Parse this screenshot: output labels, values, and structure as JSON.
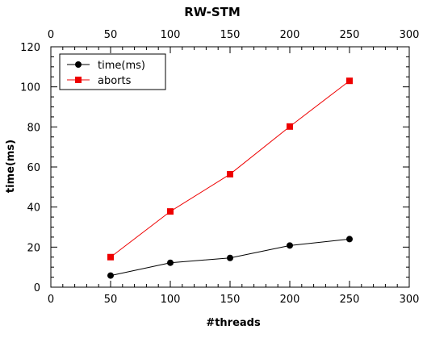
{
  "chart_data": {
    "type": "line",
    "title": "RW-STM",
    "xlabel": "#threads",
    "ylabel": "time(ms)",
    "xlim": [
      0,
      300
    ],
    "ylim": [
      0,
      120
    ],
    "x_ticks": [
      0,
      50,
      100,
      150,
      200,
      250,
      300
    ],
    "y_ticks": [
      0,
      20,
      40,
      60,
      80,
      100,
      120
    ],
    "top_axis_ticks": [
      0,
      50,
      100,
      150,
      200,
      250,
      300
    ],
    "grid": false,
    "legend_position": "top-left",
    "x": [
      50,
      100,
      150,
      200,
      250
    ],
    "series": [
      {
        "name": "time(ms)",
        "color": "#000000",
        "marker": "circle",
        "values": [
          5.8,
          12.2,
          14.6,
          20.8,
          24.0
        ]
      },
      {
        "name": "aborts",
        "color": "#ee0000",
        "marker": "square",
        "values": [
          15.0,
          37.8,
          56.4,
          80.2,
          103.0
        ]
      }
    ]
  }
}
